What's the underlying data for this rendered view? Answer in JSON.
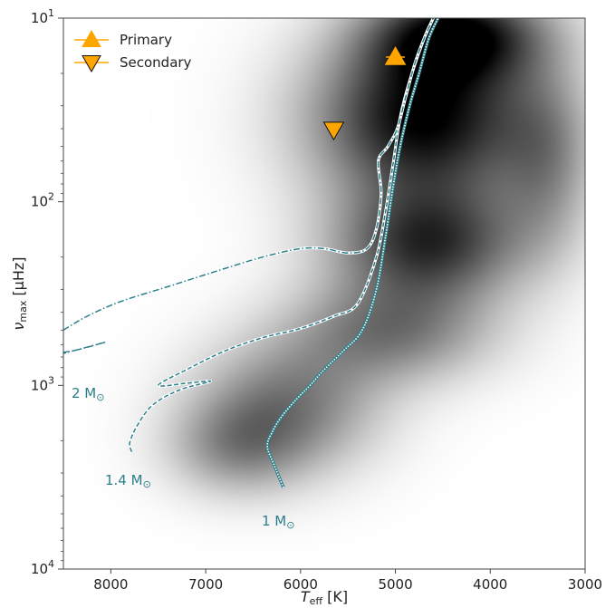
{
  "chart_data": {
    "type": "scatter",
    "xlabel": {
      "main": "T",
      "sub": "eff",
      "unit": " [K]"
    },
    "ylabel": {
      "main": "ν",
      "sub": "max",
      "unit": " [μHz]"
    },
    "xlim": [
      8500,
      3000
    ],
    "ylim": [
      10,
      10000
    ],
    "yscale": "log",
    "x_ticks": [
      8000,
      7000,
      6000,
      5000,
      4000,
      3000
    ],
    "y_ticks": [
      {
        "value": 10,
        "base": "10",
        "exp": "1"
      },
      {
        "value": 100,
        "base": "10",
        "exp": "2"
      },
      {
        "value": 1000,
        "base": "10",
        "exp": "3"
      },
      {
        "value": 10000,
        "base": "10",
        "exp": "4"
      }
    ],
    "colors": {
      "track": "#2b7f8a",
      "marker": "#ffa500",
      "density": "#000000"
    },
    "legend": {
      "placement": "top-left",
      "entries": [
        {
          "label": "Primary",
          "marker": "triangle-up"
        },
        {
          "label": "Secondary",
          "marker": "triangle-down"
        }
      ]
    },
    "stars": [
      {
        "name": "Primary",
        "teff": 5000,
        "numax": 16.3,
        "teff_err": 100,
        "marker": "triangle-up"
      },
      {
        "name": "Secondary",
        "teff": 5650,
        "numax": 40.5,
        "teff_err": 60,
        "marker": "triangle-down"
      }
    ],
    "tracks": [
      {
        "mass_label": {
          "text": "1 M",
          "sun": "⊙"
        },
        "style": "dotted-white",
        "points": [
          [
            6180,
            3600
          ],
          [
            6280,
            2700
          ],
          [
            6350,
            2150
          ],
          [
            6300,
            1800
          ],
          [
            6200,
            1480
          ],
          [
            6050,
            1200
          ],
          [
            5900,
            1000
          ],
          [
            5750,
            820
          ],
          [
            5550,
            650
          ],
          [
            5350,
            500
          ],
          [
            5200,
            300
          ],
          [
            5100,
            150
          ],
          [
            5020,
            80
          ],
          [
            4950,
            50
          ],
          [
            4850,
            30
          ],
          [
            4750,
            20
          ],
          [
            4650,
            13
          ],
          [
            4550,
            10
          ]
        ]
      },
      {
        "mass_label": {
          "text": "1.4 M",
          "sun": "⊙"
        },
        "style": "dashed",
        "points": [
          [
            7780,
            2300
          ],
          [
            7800,
            2050
          ],
          [
            7720,
            1650
          ],
          [
            7560,
            1280
          ],
          [
            7280,
            1060
          ],
          [
            6950,
            950
          ],
          [
            7180,
            970
          ],
          [
            7500,
            1000
          ],
          [
            7200,
            820
          ],
          [
            6800,
            650
          ],
          [
            6400,
            550
          ],
          [
            6000,
            490
          ],
          [
            5650,
            420
          ],
          [
            5400,
            360
          ],
          [
            5200,
            200
          ],
          [
            5100,
            110
          ],
          [
            5020,
            60
          ],
          [
            4950,
            35
          ],
          [
            4850,
            22
          ],
          [
            4700,
            13
          ],
          [
            4600,
            10
          ]
        ]
      },
      {
        "mass_label": {
          "text": "2 M",
          "sun": "⊙"
        },
        "style": "dash-dot",
        "points": [
          [
            8500,
            500
          ],
          [
            8250,
            420
          ],
          [
            7900,
            350
          ],
          [
            7400,
            290
          ],
          [
            6900,
            240
          ],
          [
            6400,
            200
          ],
          [
            6000,
            180
          ],
          [
            5750,
            180
          ],
          [
            5500,
            190
          ],
          [
            5300,
            180
          ],
          [
            5200,
            140
          ],
          [
            5150,
            90
          ],
          [
            5180,
            60
          ],
          [
            5080,
            50
          ],
          [
            4980,
            40
          ],
          [
            4900,
            28
          ],
          [
            4800,
            18
          ],
          [
            4700,
            13
          ],
          [
            4600,
            10
          ]
        ]
      }
    ],
    "track_hooks": [
      {
        "points": [
          [
            8500,
            660
          ],
          [
            8350,
            640
          ],
          [
            8050,
            580
          ],
          [
            8500,
            670
          ]
        ]
      }
    ],
    "density_blobs": [
      {
        "teff": 4700,
        "numax": 35,
        "sx": 820,
        "sy_dex": 0.32,
        "w": 1.0
      },
      {
        "teff": 4350,
        "numax": 12,
        "sx": 650,
        "sy_dex": 0.18,
        "w": 0.85
      },
      {
        "teff": 4650,
        "numax": 170,
        "sx": 700,
        "sy_dex": 0.22,
        "w": 0.75
      },
      {
        "teff": 5050,
        "numax": 500,
        "sx": 750,
        "sy_dex": 0.2,
        "w": 0.5
      },
      {
        "teff": 6150,
        "numax": 1300,
        "sx": 680,
        "sy_dex": 0.25,
        "w": 0.5
      },
      {
        "teff": 6700,
        "numax": 2200,
        "sx": 500,
        "sy_dex": 0.18,
        "w": 0.32
      },
      {
        "teff": 3400,
        "numax": 60,
        "sx": 350,
        "sy_dex": 0.35,
        "w": 0.35
      }
    ]
  }
}
